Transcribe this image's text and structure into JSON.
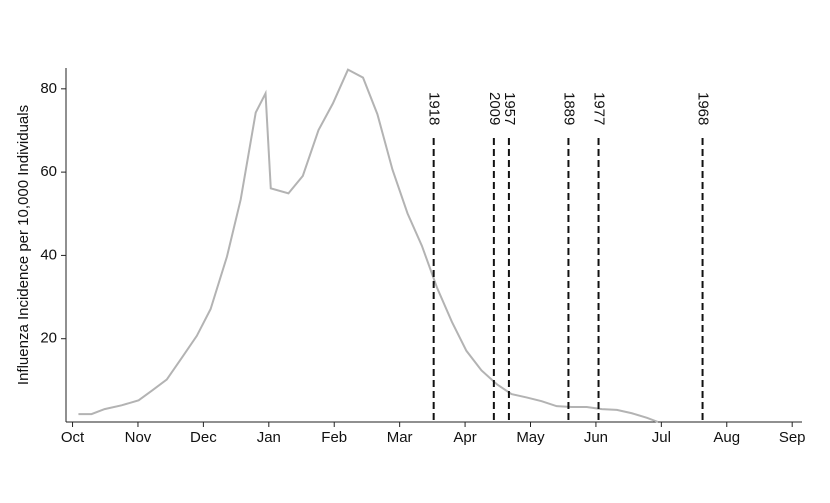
{
  "chart_data": {
    "type": "line",
    "y_label": "Influenza Incidence per 10,000 Individuals",
    "x": [
      0.09,
      0.29,
      0.49,
      0.75,
      1.01,
      1.22,
      1.44,
      1.67,
      1.9,
      2.11,
      2.36,
      2.57,
      2.8,
      2.95,
      3.03,
      3.3,
      3.52,
      3.76,
      3.98,
      4.21,
      4.44,
      4.66,
      4.89,
      5.12,
      5.34,
      5.57,
      5.8,
      6.02,
      6.25,
      6.49,
      6.71,
      6.94,
      7.17,
      7.4,
      7.63,
      7.86,
      8.09,
      8.32,
      8.55,
      8.78,
      8.95
    ],
    "values": [
      1.9,
      1.9,
      3.1,
      4.0,
      5.2,
      7.6,
      10.2,
      15.4,
      20.7,
      27.1,
      39.7,
      53.4,
      74.3,
      78.9,
      56.1,
      54.9,
      59.1,
      70.1,
      76.5,
      84.6,
      82.7,
      73.9,
      60.6,
      50.1,
      42.3,
      32.3,
      24.0,
      17.1,
      12.4,
      9.0,
      6.7,
      5.9,
      5.0,
      3.8,
      3.6,
      3.6,
      3.1,
      2.9,
      2.1,
      1.0,
      0
    ],
    "color": "#b3b3b3",
    "markers": [
      {
        "label": "1918",
        "x": 5.52
      },
      {
        "label": "2009",
        "x": 6.44
      },
      {
        "label": "1957",
        "x": 6.67
      },
      {
        "label": "1889",
        "x": 7.58
      },
      {
        "label": "1977",
        "x": 8.04
      },
      {
        "label": "1968",
        "x": 9.63
      }
    ],
    "xlim": [
      -0.1,
      11.15
    ],
    "xticks": [
      {
        "value": 0,
        "label": "Oct"
      },
      {
        "value": 1,
        "label": "Nov"
      },
      {
        "value": 2,
        "label": "Dec"
      },
      {
        "value": 3,
        "label": "Jan"
      },
      {
        "value": 4,
        "label": "Feb"
      },
      {
        "value": 5,
        "label": "Mar"
      },
      {
        "value": 6,
        "label": "Apr"
      },
      {
        "value": 7,
        "label": "May"
      },
      {
        "value": 8,
        "label": "Jun"
      },
      {
        "value": 9,
        "label": "Jul"
      },
      {
        "value": 10,
        "label": "Aug"
      },
      {
        "value": 11,
        "label": "Sep"
      }
    ],
    "ylim": [
      0,
      85
    ],
    "yticks": [
      20,
      40,
      60,
      80
    ]
  }
}
